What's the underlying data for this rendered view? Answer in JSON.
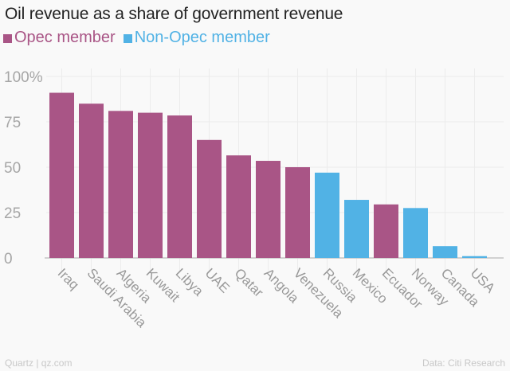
{
  "chart_data": {
    "type": "bar",
    "title": "Oil revenue as a share of government revenue",
    "xlabel": "",
    "ylabel": "",
    "ylim": [
      0,
      100
    ],
    "yticks": [
      0,
      25,
      50,
      75,
      100
    ],
    "ytick_labels": [
      "0",
      "25",
      "50",
      "75",
      "100%"
    ],
    "grid": true,
    "legend_position": "top-left",
    "legend": [
      {
        "name": "Opec member",
        "color": "#a95586"
      },
      {
        "name": "Non-Opec member",
        "color": "#51b2e5"
      }
    ],
    "categories": [
      "Iraq",
      "Saudi Arabia",
      "Algeria",
      "Kuwait",
      "Libya",
      "UAE",
      "Qatar",
      "Angola",
      "Venezuela",
      "Russia",
      "Mexico",
      "Ecuador",
      "Norway",
      "Canada",
      "USA"
    ],
    "values": [
      91,
      85,
      81,
      80,
      78.5,
      65,
      56.5,
      53.5,
      50,
      47,
      32,
      29.5,
      27.5,
      6.5,
      1
    ],
    "groups": [
      "Opec member",
      "Opec member",
      "Opec member",
      "Opec member",
      "Opec member",
      "Opec member",
      "Opec member",
      "Opec member",
      "Opec member",
      "Non-Opec member",
      "Non-Opec member",
      "Opec member",
      "Non-Opec member",
      "Non-Opec member",
      "Non-Opec member"
    ]
  },
  "footer": {
    "source_left": "Quartz | qz.com",
    "source_right": "Data: Citi Research"
  }
}
